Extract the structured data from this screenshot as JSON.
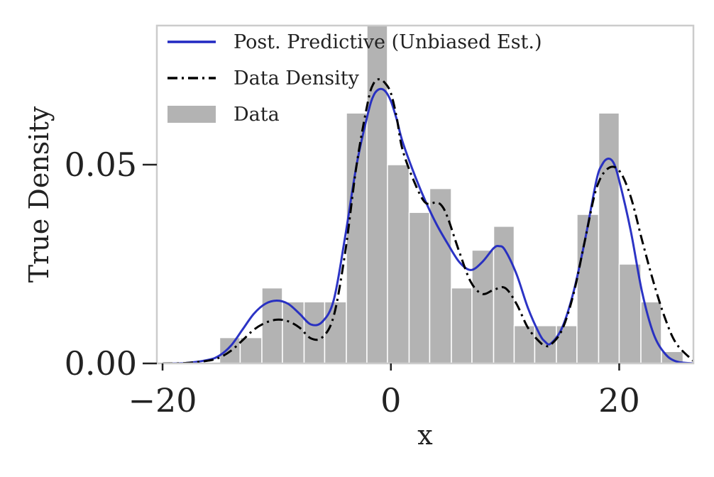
{
  "chart_data": {
    "type": "histogram+line",
    "title": "",
    "xlabel": "x",
    "ylabel": "True Density",
    "xlim": [
      -20.5,
      26.5
    ],
    "ylim": [
      0,
      0.085
    ],
    "xticks": [
      -20,
      0,
      20
    ],
    "xtick_labels": [
      "−20",
      "0",
      "20"
    ],
    "yticks": [
      0,
      0.05
    ],
    "ytick_labels": [
      "0.00",
      "0.05"
    ],
    "grid": false,
    "legend_position": "upper-left",
    "histogram": {
      "name": "Data",
      "color": "#b3b3b3",
      "edge_color": "#ffffff",
      "bins": [
        {
          "x0": -15.0,
          "x1": -13.2,
          "density": 0.0065
        },
        {
          "x0": -13.2,
          "x1": -11.3,
          "density": 0.0065
        },
        {
          "x0": -11.3,
          "x1": -9.5,
          "density": 0.019
        },
        {
          "x0": -9.5,
          "x1": -7.6,
          "density": 0.0155
        },
        {
          "x0": -7.6,
          "x1": -5.8,
          "density": 0.0155
        },
        {
          "x0": -5.8,
          "x1": -3.9,
          "density": 0.0155
        },
        {
          "x0": -3.9,
          "x1": -2.1,
          "density": 0.063
        },
        {
          "x0": -2.1,
          "x1": -0.3,
          "density": 0.096
        },
        {
          "x0": -0.3,
          "x1": 1.6,
          "density": 0.05
        },
        {
          "x0": 1.6,
          "x1": 3.4,
          "density": 0.038
        },
        {
          "x0": 3.4,
          "x1": 5.3,
          "density": 0.044
        },
        {
          "x0": 5.3,
          "x1": 7.1,
          "density": 0.019
        },
        {
          "x0": 7.1,
          "x1": 9.0,
          "density": 0.0285
        },
        {
          "x0": 9.0,
          "x1": 10.8,
          "density": 0.0345
        },
        {
          "x0": 10.8,
          "x1": 12.6,
          "density": 0.0095
        },
        {
          "x0": 12.6,
          "x1": 14.5,
          "density": 0.0095
        },
        {
          "x0": 14.5,
          "x1": 16.3,
          "density": 0.0095
        },
        {
          "x0": 16.3,
          "x1": 18.2,
          "density": 0.0375
        },
        {
          "x0": 18.2,
          "x1": 20.0,
          "density": 0.063
        },
        {
          "x0": 20.0,
          "x1": 21.9,
          "density": 0.025
        },
        {
          "x0": 21.9,
          "x1": 23.7,
          "density": 0.0155
        },
        {
          "x0": 23.7,
          "x1": 25.6,
          "density": 0.003
        }
      ]
    },
    "series": [
      {
        "name": "Post. Predictive (Unbiased Est.)",
        "color": "#2129c2",
        "style": "solid",
        "x": [
          -20.0,
          -18.0,
          -16.0,
          -15.0,
          -14.0,
          -13.0,
          -12.0,
          -11.0,
          -10.0,
          -9.0,
          -8.0,
          -7.0,
          -6.0,
          -5.0,
          -4.0,
          -3.0,
          -2.0,
          -1.5,
          -1.0,
          -0.5,
          0.0,
          0.5,
          1.0,
          2.0,
          3.0,
          4.0,
          5.0,
          6.0,
          7.0,
          8.0,
          9.0,
          9.5,
          10.0,
          11.0,
          12.0,
          13.0,
          13.5,
          14.0,
          15.0,
          16.0,
          17.0,
          18.0,
          18.5,
          19.0,
          19.5,
          20.0,
          21.0,
          22.0,
          23.0,
          24.0,
          25.0,
          26.5
        ],
        "y": [
          0.0,
          0.0001,
          0.0009,
          0.002,
          0.0045,
          0.0085,
          0.0125,
          0.015,
          0.0158,
          0.015,
          0.0125,
          0.0098,
          0.0105,
          0.016,
          0.032,
          0.05,
          0.063,
          0.0675,
          0.069,
          0.0685,
          0.066,
          0.0615,
          0.056,
          0.048,
          0.041,
          0.035,
          0.03,
          0.0255,
          0.0235,
          0.0255,
          0.029,
          0.0295,
          0.0285,
          0.0225,
          0.014,
          0.0075,
          0.0055,
          0.005,
          0.009,
          0.018,
          0.031,
          0.046,
          0.05,
          0.0515,
          0.0505,
          0.046,
          0.0335,
          0.018,
          0.0075,
          0.0025,
          0.0005,
          0.0
        ]
      },
      {
        "name": "Data Density",
        "color": "#000000",
        "style": "dashdot",
        "x": [
          -20.0,
          -18.0,
          -16.0,
          -15.0,
          -14.0,
          -13.0,
          -12.0,
          -11.0,
          -10.0,
          -9.0,
          -8.0,
          -7.0,
          -6.0,
          -5.0,
          -4.0,
          -3.0,
          -2.0,
          -1.5,
          -1.0,
          -0.5,
          0.0,
          0.5,
          1.0,
          2.0,
          3.0,
          4.0,
          4.5,
          5.0,
          6.0,
          7.0,
          8.0,
          9.0,
          10.0,
          11.0,
          12.0,
          13.0,
          13.5,
          14.0,
          15.0,
          16.0,
          17.0,
          18.0,
          19.0,
          20.0,
          21.0,
          22.0,
          23.0,
          24.0,
          25.0,
          26.5
        ],
        "y": [
          0.0,
          0.0001,
          0.0007,
          0.0015,
          0.0032,
          0.0058,
          0.0085,
          0.0102,
          0.011,
          0.0106,
          0.009,
          0.0063,
          0.0066,
          0.012,
          0.028,
          0.05,
          0.066,
          0.0705,
          0.0715,
          0.0705,
          0.068,
          0.062,
          0.054,
          0.046,
          0.0405,
          0.0405,
          0.0395,
          0.0365,
          0.028,
          0.0205,
          0.0175,
          0.0185,
          0.019,
          0.015,
          0.009,
          0.0055,
          0.0045,
          0.0047,
          0.0085,
          0.0175,
          0.031,
          0.044,
          0.049,
          0.0485,
          0.042,
          0.031,
          0.0205,
          0.0115,
          0.005,
          0.0006
        ]
      }
    ]
  }
}
